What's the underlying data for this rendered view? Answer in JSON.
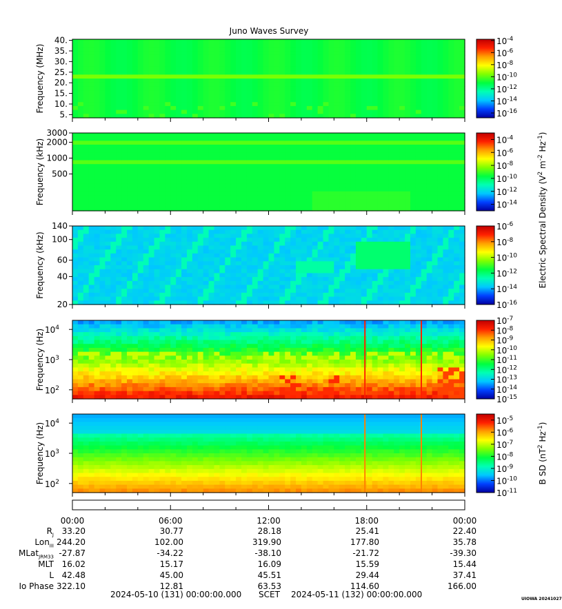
{
  "chart_data": {
    "type": "heatmap",
    "title": "Juno Waves Survey",
    "colorbar_shared_label": {
      "text": "Electric Spectral Density (V",
      "sup1": "2",
      "mid": " m",
      "sup2": "-2",
      "mid2": " Hz",
      "sup3": "-1",
      "end": ")"
    },
    "panels": [
      {
        "id": "p1",
        "ylabel": "Frequency (MHz)",
        "yscale": "linear",
        "ylim": [
          3.5,
          40.5
        ],
        "yticks": [
          "5.",
          "10.",
          "15.",
          "20.",
          "25.",
          "30.",
          "35.",
          "40."
        ],
        "ytick_values": [
          5,
          10,
          15,
          20,
          25,
          30,
          35,
          40
        ],
        "colorbar": {
          "exp_ticks": [
            "-4",
            "-6",
            "-8",
            "-10",
            "-12",
            "-14",
            "-16"
          ],
          "log_range": [
            -16.8,
            -3.8
          ]
        }
      },
      {
        "id": "p2",
        "ylabel": "Frequency (kHz)",
        "yscale": "log",
        "ylim": [
          100,
          3000
        ],
        "yticks": [
          "3000",
          "2000",
          "1000",
          "500"
        ],
        "ytick_values": [
          3000,
          2000,
          1000,
          500
        ],
        "colorbar": {
          "exp_ticks": [
            "-4",
            "-6",
            "-8",
            "-10",
            "-12",
            "-14"
          ],
          "log_range": [
            -15,
            -3
          ]
        }
      },
      {
        "id": "p3",
        "ylabel": "Frequency (kHz)",
        "yscale": "log",
        "ylim": [
          20,
          140
        ],
        "yticks": [
          "140",
          "100",
          "60",
          "40",
          "20"
        ],
        "ytick_values": [
          140,
          100,
          60,
          40,
          20
        ],
        "colorbar": {
          "exp_ticks": [
            "-6",
            "-8",
            "-10",
            "-12",
            "-14",
            "-16"
          ],
          "log_range": [
            -16,
            -6
          ]
        }
      },
      {
        "id": "p4",
        "ylabel": "Frequency (Hz)",
        "yscale": "log",
        "ylim": [
          50,
          20000
        ],
        "yticks_pow": [
          {
            "base": "10",
            "exp": "4",
            "value": 10000
          },
          {
            "base": "10",
            "exp": "3",
            "value": 1000
          },
          {
            "base": "10",
            "exp": "2",
            "value": 100
          }
        ],
        "colorbar": {
          "exp_ticks": [
            "-7",
            "-8",
            "-9",
            "-10",
            "-11",
            "-12",
            "-13",
            "-14",
            "-15"
          ],
          "log_range": [
            -15,
            -7
          ]
        }
      },
      {
        "id": "p5",
        "ylabel": "Frequency (Hz)",
        "yscale": "log",
        "ylim": [
          50,
          20000
        ],
        "yticks_pow": [
          {
            "base": "10",
            "exp": "4",
            "value": 10000
          },
          {
            "base": "10",
            "exp": "3",
            "value": 1000
          },
          {
            "base": "10",
            "exp": "2",
            "value": 100
          }
        ],
        "colorbar": {
          "exp_ticks": [
            "-5",
            "-6",
            "-7",
            "-8",
            "-9",
            "-10",
            "-11"
          ],
          "log_range": [
            -11,
            -4.5
          ],
          "label": {
            "text": "B SD (nT",
            "sup1": "2",
            "mid": " Hz",
            "sup2": "-1",
            "end": ")"
          }
        }
      }
    ],
    "x_time_ticks": [
      "00:00",
      "06:00",
      "12:00",
      "18:00",
      "00:00"
    ],
    "x_hours": [
      0,
      6,
      12,
      18,
      24
    ],
    "ephemeris": [
      {
        "label": "R",
        "sub": "J",
        "values": [
          "33.20",
          "30.77",
          "28.18",
          "25.41",
          "22.40"
        ]
      },
      {
        "label": "Lon",
        "sub": "III",
        "values": [
          "244.20",
          "102.00",
          "319.90",
          "177.80",
          "35.78"
        ]
      },
      {
        "label": "MLat",
        "sub": "JRM33",
        "values": [
          "-27.87",
          "-34.22",
          "-38.10",
          "-21.72",
          "-39.30"
        ]
      },
      {
        "label": "MLT",
        "sub": "",
        "values": [
          "16.02",
          "15.17",
          "16.09",
          "15.59",
          "15.44"
        ]
      },
      {
        "label": "L",
        "sub": "",
        "values": [
          "42.48",
          "45.00",
          "45.51",
          "29.44",
          "37.41"
        ]
      },
      {
        "label": "Io Phase",
        "sub": "",
        "values": [
          "322.10",
          "12.81",
          "63.53",
          "114.60",
          "166.00"
        ]
      }
    ],
    "footer": {
      "start": "2024-05-10 (131) 00:00:00.000",
      "axis": "SCET",
      "end": "2024-05-11 (132) 00:00:00.000",
      "stamp": "UIOWA 20241027"
    },
    "colors": {
      "colormap": [
        "#0000a0",
        "#0040ff",
        "#00c8ff",
        "#00ffb4",
        "#00ff40",
        "#80ff00",
        "#ffff00",
        "#ffa000",
        "#ff2000",
        "#c00000"
      ]
    }
  }
}
